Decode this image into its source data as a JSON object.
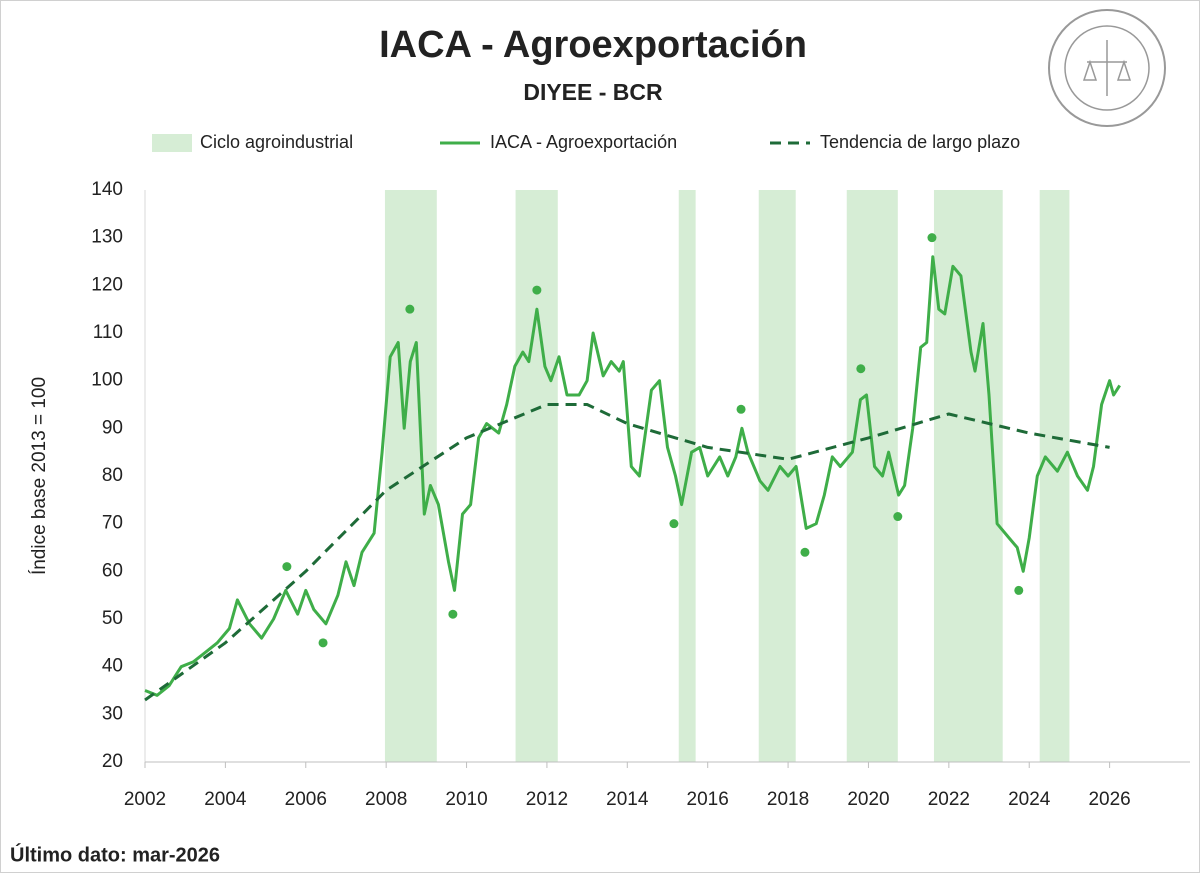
{
  "chart_data": {
    "type": "line",
    "title": "IACA - Agroexportación",
    "subtitle": "DIYEE - BCR",
    "y_label": "Índice base 2013 = 100",
    "footnote": "Último dato: mar-2026",
    "xlim": [
      2002,
      2028
    ],
    "xticks": [
      2002,
      2004,
      2006,
      2008,
      2010,
      2012,
      2014,
      2016,
      2018,
      2020,
      2022,
      2024,
      2026
    ],
    "ylim": [
      20,
      140
    ],
    "yticks": [
      20,
      30,
      40,
      50,
      60,
      70,
      80,
      90,
      100,
      110,
      120,
      130,
      140
    ],
    "bands": {
      "name": "Ciclo agroindustrial",
      "color": "#d6edd5",
      "ranges": [
        [
          2007.97,
          2009.26
        ],
        [
          2011.22,
          2012.27
        ],
        [
          2015.28,
          2015.7
        ],
        [
          2017.27,
          2018.19
        ],
        [
          2019.46,
          2020.73
        ],
        [
          2021.63,
          2023.34
        ],
        [
          2024.26,
          2025.0
        ]
      ]
    },
    "series": [
      {
        "name": "IACA - Agroexportación",
        "color": "#3fae49",
        "style": "solid",
        "x": [
          2002.0,
          2002.3,
          2002.6,
          2002.9,
          2003.2,
          2003.5,
          2003.8,
          2004.1,
          2004.3,
          2004.6,
          2004.9,
          2005.2,
          2005.5,
          2005.8,
          2006.0,
          2006.2,
          2006.5,
          2006.8,
          2007.0,
          2007.2,
          2007.4,
          2007.7,
          2007.9,
          2008.1,
          2008.3,
          2008.45,
          2008.6,
          2008.75,
          2008.95,
          2009.1,
          2009.3,
          2009.55,
          2009.7,
          2009.9,
          2010.1,
          2010.3,
          2010.5,
          2010.8,
          2011.0,
          2011.2,
          2011.4,
          2011.55,
          2011.75,
          2011.95,
          2012.1,
          2012.3,
          2012.5,
          2012.8,
          2013.0,
          2013.15,
          2013.4,
          2013.6,
          2013.8,
          2013.9,
          2014.1,
          2014.3,
          2014.6,
          2014.8,
          2015.0,
          2015.2,
          2015.35,
          2015.6,
          2015.8,
          2016.0,
          2016.3,
          2016.5,
          2016.7,
          2016.85,
          2017.0,
          2017.3,
          2017.5,
          2017.8,
          2018.0,
          2018.2,
          2018.45,
          2018.7,
          2018.9,
          2019.1,
          2019.3,
          2019.6,
          2019.8,
          2019.95,
          2020.15,
          2020.35,
          2020.5,
          2020.75,
          2020.9,
          2021.1,
          2021.3,
          2021.45,
          2021.6,
          2021.75,
          2021.9,
          2022.1,
          2022.3,
          2022.55,
          2022.65,
          2022.85,
          2023.0,
          2023.2,
          2023.5,
          2023.7,
          2023.85,
          2024.0,
          2024.2,
          2024.4,
          2024.7,
          2024.95,
          2025.2,
          2025.45,
          2025.6,
          2025.8,
          2026.0,
          2026.1,
          2026.25
        ],
        "values": [
          35,
          34,
          36,
          40,
          41,
          43,
          45,
          48,
          54,
          49,
          46,
          50,
          56,
          51,
          56,
          52,
          49,
          55,
          62,
          57,
          64,
          68,
          85,
          105,
          108,
          90,
          104,
          108,
          72,
          78,
          74,
          62,
          56,
          72,
          74,
          88,
          91,
          89,
          95,
          103,
          106,
          104,
          115,
          103,
          100,
          105,
          97,
          97,
          100,
          110,
          101,
          104,
          102,
          104,
          82,
          80,
          98,
          100,
          86,
          80,
          74,
          85,
          86,
          80,
          84,
          80,
          84,
          90,
          85,
          79,
          77,
          82,
          80,
          82,
          69,
          70,
          76,
          84,
          82,
          85,
          96,
          97,
          82,
          80,
          85,
          76,
          78,
          90,
          107,
          108,
          126,
          115,
          114,
          124,
          122,
          106,
          102,
          112,
          97,
          70,
          67,
          65,
          60,
          67,
          80,
          84,
          81,
          85,
          80,
          77,
          82,
          95,
          100,
          97,
          99
        ]
      },
      {
        "name": "Tendencia de largo plazo",
        "color": "#1e6b38",
        "style": "dashed",
        "x": [
          2002,
          2004,
          2006,
          2008,
          2010,
          2012,
          2013,
          2014,
          2016,
          2018,
          2020,
          2022,
          2024,
          2026
        ],
        "values": [
          33,
          45,
          60,
          77,
          88,
          95,
          95,
          91,
          86,
          83.5,
          88,
          93,
          89,
          86
        ]
      }
    ],
    "markers": {
      "color": "#3fae49",
      "x": [
        2005.53,
        2006.43,
        2008.59,
        2009.66,
        2011.75,
        2015.16,
        2016.83,
        2018.42,
        2019.81,
        2020.73,
        2021.58,
        2023.74
      ],
      "values": [
        61,
        45,
        115,
        51,
        119,
        70,
        94,
        64,
        102.5,
        71.5,
        130,
        56
      ]
    }
  }
}
